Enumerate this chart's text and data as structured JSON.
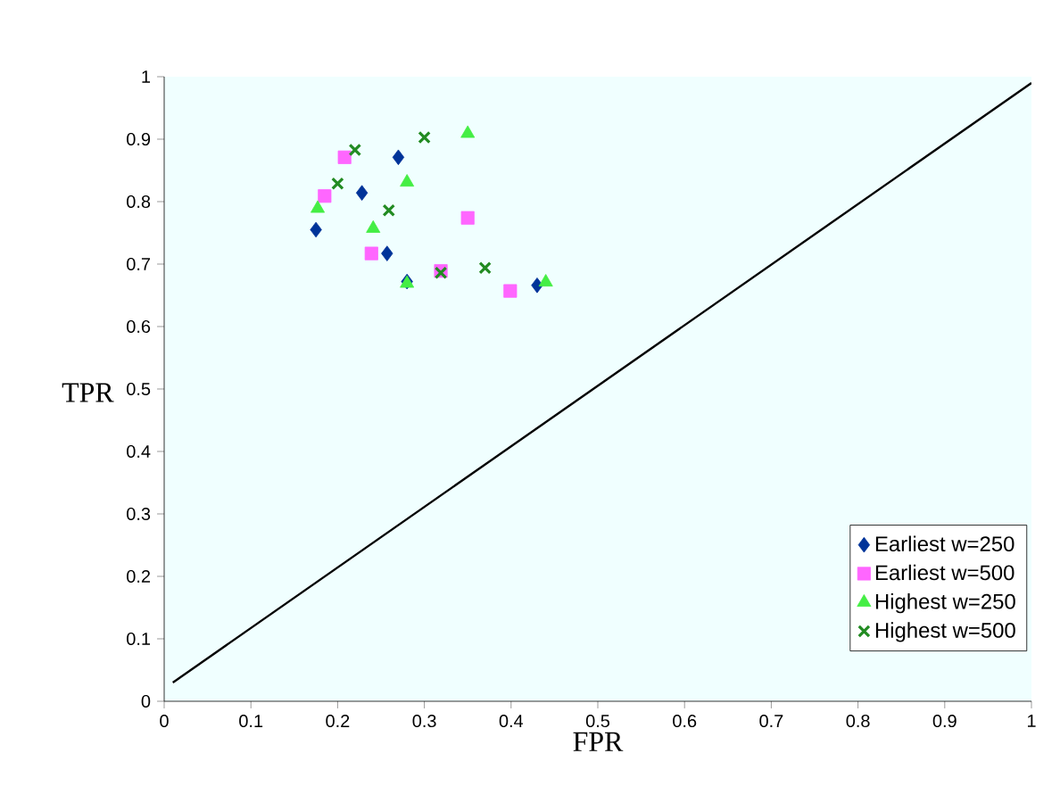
{
  "chart_data": {
    "type": "scatter",
    "xlabel": "FPR",
    "ylabel": "TPR",
    "xlim": [
      0,
      1
    ],
    "ylim": [
      0,
      1
    ],
    "xticks": [
      0,
      0.1,
      0.2,
      0.3,
      0.4,
      0.5,
      0.6,
      0.7,
      0.8,
      0.9,
      1
    ],
    "yticks": [
      0,
      0.1,
      0.2,
      0.3,
      0.4,
      0.5,
      0.6,
      0.7,
      0.8,
      0.9,
      1
    ],
    "legend": "bottom right",
    "series": [
      {
        "name": "Earliest w=250",
        "color": "#003399",
        "marker": "diamond",
        "x": [
          0.175,
          0.228,
          0.27,
          0.257,
          0.28,
          0.43
        ],
        "values": [
          0.755,
          0.814,
          0.871,
          0.717,
          0.672,
          0.666
        ]
      },
      {
        "name": "Earliest w=500",
        "color": "#ff66ff",
        "marker": "square",
        "x": [
          0.208,
          0.185,
          0.35,
          0.239,
          0.319,
          0.399
        ],
        "values": [
          0.871,
          0.809,
          0.774,
          0.717,
          0.689,
          0.657
        ]
      },
      {
        "name": "Highest w=250",
        "color": "#44ee44",
        "marker": "triangle",
        "x": [
          0.35,
          0.28,
          0.177,
          0.241,
          0.28,
          0.44
        ],
        "values": [
          0.909,
          0.831,
          0.789,
          0.757,
          0.669,
          0.671
        ]
      },
      {
        "name": "Highest w=500",
        "color": "#228b22",
        "marker": "cross",
        "x": [
          0.22,
          0.3,
          0.2,
          0.259,
          0.319,
          0.37
        ],
        "values": [
          0.883,
          0.903,
          0.829,
          0.786,
          0.686,
          0.694
        ]
      },
      {
        "type": "line",
        "color": "#000000",
        "marker": "none",
        "line_style": "solid",
        "x": [
          0.01,
          1
        ],
        "values": [
          0.03,
          0.99
        ]
      }
    ]
  }
}
